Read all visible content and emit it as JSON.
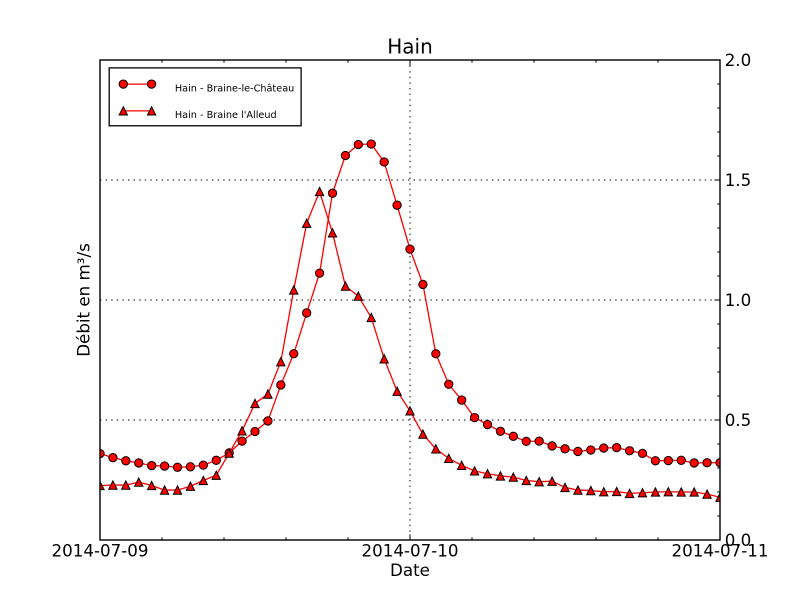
{
  "chart_data": {
    "type": "line",
    "title": "Hain",
    "xlabel": "Date",
    "ylabel": "Débit en m³/s",
    "x_unit": "hours since 2014-07-09 00:00",
    "x_tick_labels": [
      "2014-07-09",
      "2014-07-10",
      "2014-07-11"
    ],
    "x_major_ticks_hours": [
      0,
      24,
      48
    ],
    "x_minor_step_hours": 4.8,
    "y_tick_labels": [
      "0.0",
      "0.5",
      "1.0",
      "1.5",
      "2.0"
    ],
    "y_major_ticks": [
      0.0,
      0.5,
      1.0,
      1.5,
      2.0
    ],
    "y_minor_step": 0.1,
    "xlim_hours": [
      0,
      48
    ],
    "ylim": [
      0.0,
      2.0
    ],
    "grid": true,
    "grid_style": "dotted",
    "tick_direction": "in",
    "y_tick_label_side": "right",
    "legend_position": "upper left",
    "series": [
      {
        "name": "Hain - Braine-le-Château",
        "marker": "circle",
        "color": "#ff0000",
        "marker_edge": "#000000",
        "x_hours": [
          0,
          1,
          2,
          3,
          4,
          5,
          6,
          7,
          8,
          9,
          10,
          11,
          12,
          13,
          14,
          15,
          16,
          17,
          18,
          19,
          20,
          21,
          22,
          23,
          24,
          25,
          26,
          27,
          28,
          29,
          30,
          31,
          32,
          33,
          34,
          35,
          36,
          37,
          38,
          39,
          40,
          41,
          42,
          43,
          44,
          45,
          46,
          47,
          48
        ],
        "values": [
          0.36,
          0.343,
          0.33,
          0.321,
          0.31,
          0.308,
          0.303,
          0.305,
          0.312,
          0.332,
          0.363,
          0.412,
          0.452,
          0.496,
          0.646,
          0.776,
          0.946,
          1.112,
          1.445,
          1.602,
          1.648,
          1.65,
          1.575,
          1.395,
          1.212,
          1.065,
          0.776,
          0.649,
          0.583,
          0.51,
          0.481,
          0.453,
          0.432,
          0.411,
          0.412,
          0.392,
          0.38,
          0.369,
          0.375,
          0.383,
          0.385,
          0.372,
          0.361,
          0.33,
          0.331,
          0.332,
          0.321,
          0.322,
          0.322
        ]
      },
      {
        "name": "Hain - Braine l'Alleud",
        "marker": "triangle",
        "color": "#ff0000",
        "marker_edge": "#000000",
        "x_hours": [
          0,
          1,
          2,
          3,
          4,
          5,
          6,
          7,
          8,
          9,
          10,
          11,
          12,
          13,
          14,
          15,
          16,
          17,
          18,
          19,
          20,
          21,
          22,
          23,
          24,
          25,
          26,
          27,
          28,
          29,
          30,
          31,
          32,
          33,
          34,
          35,
          36,
          37,
          38,
          39,
          40,
          41,
          42,
          43,
          44,
          45,
          46,
          47,
          48
        ],
        "values": [
          0.227,
          0.229,
          0.229,
          0.241,
          0.227,
          0.208,
          0.208,
          0.224,
          0.248,
          0.27,
          0.362,
          0.455,
          0.569,
          0.608,
          0.743,
          1.042,
          1.32,
          1.452,
          1.28,
          1.058,
          1.016,
          0.927,
          0.755,
          0.62,
          0.538,
          0.441,
          0.38,
          0.34,
          0.311,
          0.288,
          0.276,
          0.267,
          0.262,
          0.248,
          0.243,
          0.245,
          0.219,
          0.208,
          0.206,
          0.201,
          0.202,
          0.194,
          0.197,
          0.2,
          0.201,
          0.2,
          0.2,
          0.191,
          0.178
        ]
      }
    ]
  },
  "colors": {
    "background": "#ffffff",
    "axes_edge": "#000000",
    "grid": "#000000",
    "text": "#000000",
    "series_line": "#ff0000",
    "marker_edge": "#000000"
  }
}
